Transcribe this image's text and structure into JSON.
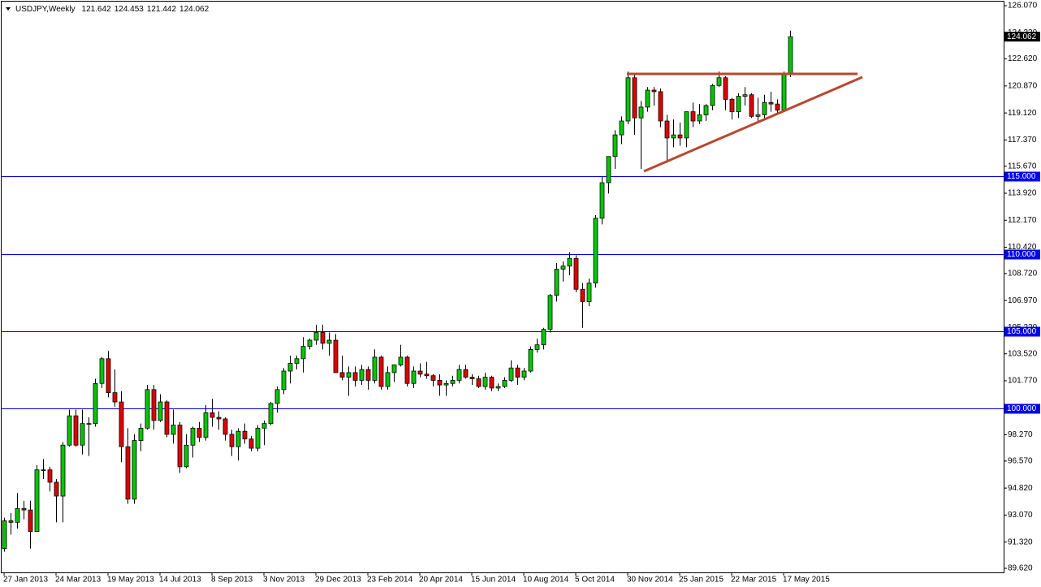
{
  "chart_data": {
    "type": "candlestick",
    "symbol": "USDJPY,Weekly",
    "categories": [
      "27 Jan 2013",
      null,
      null,
      null,
      null,
      null,
      null,
      null,
      "24 Mar 2013",
      null,
      null,
      null,
      null,
      null,
      null,
      null,
      "19 May 2013",
      null,
      null,
      null,
      null,
      null,
      null,
      null,
      "14 Jul 2013",
      null,
      null,
      null,
      null,
      null,
      null,
      null,
      "8 Sep 2013",
      null,
      null,
      null,
      null,
      null,
      null,
      null,
      "3 Nov 2013",
      null,
      null,
      null,
      null,
      null,
      null,
      null,
      "29 Dec 2013",
      null,
      null,
      null,
      null,
      null,
      null,
      null,
      "23 Feb 2014",
      null,
      null,
      null,
      null,
      null,
      null,
      null,
      "20 Apr 2014",
      null,
      null,
      null,
      null,
      null,
      null,
      null,
      "15 Jun 2014",
      null,
      null,
      null,
      null,
      null,
      null,
      null,
      "10 Aug 2014",
      null,
      null,
      null,
      null,
      null,
      null,
      null,
      "5 Oct 2014",
      null,
      null,
      null,
      null,
      null,
      null,
      null,
      "30 Nov 2014",
      null,
      null,
      null,
      null,
      null,
      null,
      null,
      "25 Jan 2015",
      null,
      null,
      null,
      null,
      null,
      null,
      null,
      "22 Mar 2015",
      null,
      null,
      null,
      null,
      null,
      null,
      null,
      "17 May 2015",
      null
    ],
    "open": [
      90.9,
      92.7,
      92.6,
      93.5,
      93.4,
      92.0,
      96.0,
      96.0,
      95.2,
      94.3,
      97.6,
      99.5,
      97.6,
      99.0,
      99.0,
      101.6,
      103.2,
      101.0,
      100.4,
      97.5,
      94.1,
      97.9,
      98.7,
      101.2,
      99.2,
      100.4,
      98.3,
      98.9,
      96.2,
      97.6,
      98.7,
      98.1,
      99.7,
      99.4,
      99.3,
      98.3,
      97.5,
      98.5,
      98.0,
      97.4,
      98.7,
      99.0,
      100.3,
      101.2,
      102.4,
      102.9,
      103.2,
      104.0,
      104.4,
      104.9,
      104.2,
      104.4,
      102.3,
      102.0,
      102.3,
      101.8,
      102.5,
      101.8,
      103.3,
      101.4,
      102.3,
      102.8,
      103.3,
      101.6,
      102.4,
      102.2,
      102.1,
      101.8,
      101.5,
      101.6,
      101.8,
      102.5,
      102.0,
      101.9,
      101.4,
      102.0,
      101.3,
      101.4,
      101.8,
      102.6,
      102.0,
      102.4,
      103.8,
      104.1,
      105.1,
      107.3,
      109.0,
      109.2,
      109.7,
      107.7,
      106.9,
      108.1,
      112.3,
      114.6,
      116.3,
      117.7,
      118.6,
      121.4,
      118.8,
      119.5,
      120.6,
      120.5,
      118.6,
      117.5,
      117.7,
      117.5,
      119.2,
      118.6,
      119.0,
      119.6,
      120.9,
      121.4,
      120.0,
      119.2,
      120.2,
      120.3,
      118.9,
      119.0,
      119.8,
      119.7,
      119.3,
      121.642
    ],
    "high": [
      92.9,
      93.2,
      94.5,
      94.0,
      94.0,
      96.3,
      96.7,
      96.2,
      95.4,
      97.8,
      99.9,
      99.9,
      99.9,
      99.4,
      101.9,
      103.3,
      103.7,
      102.5,
      101.1,
      98.7,
      98.3,
      99.0,
      101.5,
      101.5,
      100.9,
      100.5,
      99.9,
      99.1,
      98.3,
      98.8,
      99.1,
      100.2,
      100.6,
      99.8,
      99.4,
      98.6,
      98.7,
      99.0,
      98.2,
      98.9,
      99.2,
      100.4,
      101.4,
      102.6,
      103.4,
      103.4,
      104.6,
      104.5,
      105.4,
      105.4,
      104.9,
      104.8,
      103.4,
      102.7,
      102.7,
      102.8,
      102.7,
      103.8,
      103.4,
      102.7,
      102.8,
      104.1,
      103.4,
      102.7,
      102.9,
      103.0,
      102.2,
      102.2,
      101.8,
      102.1,
      102.8,
      102.8,
      102.2,
      102.1,
      102.3,
      102.1,
      101.6,
      102.0,
      103.1,
      102.8,
      102.6,
      104.0,
      104.5,
      105.2,
      107.4,
      109.4,
      109.5,
      110.1,
      109.9,
      108.1,
      108.4,
      112.5,
      115.0,
      116.3,
      118.0,
      118.9,
      121.8,
      121.7,
      119.9,
      120.8,
      120.8,
      120.7,
      119.0,
      118.7,
      118.5,
      119.2,
      119.8,
      119.7,
      119.7,
      121.0,
      121.8,
      121.5,
      120.1,
      120.4,
      120.8,
      120.4,
      120.1,
      120.3,
      120.5,
      120.0,
      121.8,
      124.453
    ],
    "low": [
      90.7,
      91.8,
      92.2,
      92.8,
      90.9,
      92.0,
      95.4,
      94.6,
      92.6,
      92.6,
      97.5,
      97.5,
      97.0,
      96.9,
      98.8,
      101.3,
      100.7,
      100.1,
      96.5,
      93.8,
      93.8,
      97.2,
      98.6,
      98.6,
      99.1,
      98.1,
      97.7,
      95.8,
      96.1,
      96.8,
      97.8,
      97.9,
      98.8,
      98.6,
      97.9,
      96.9,
      96.6,
      97.7,
      97.2,
      97.2,
      97.6,
      98.9,
      99.7,
      100.9,
      101.6,
      102.5,
      102.3,
      103.8,
      104.1,
      103.8,
      103.4,
      102.3,
      101.8,
      100.8,
      101.4,
      101.5,
      101.2,
      101.6,
      101.2,
      101.2,
      101.7,
      102.7,
      101.4,
      101.3,
      102.0,
      101.9,
      101.4,
      100.8,
      100.8,
      101.4,
      101.6,
      101.9,
      101.5,
      101.3,
      101.2,
      101.1,
      101.1,
      101.3,
      101.7,
      101.5,
      101.8,
      102.3,
      103.6,
      103.8,
      104.9,
      106.9,
      108.2,
      108.6,
      107.5,
      105.2,
      106.6,
      107.8,
      111.9,
      113.9,
      115.5,
      117.1,
      118.4,
      117.7,
      115.5,
      119.2,
      119.6,
      118.2,
      115.9,
      116.9,
      117.0,
      116.9,
      118.2,
      118.4,
      118.6,
      119.3,
      120.8,
      119.3,
      118.7,
      118.8,
      119.6,
      118.8,
      118.5,
      118.8,
      119.2,
      119.0,
      119.2,
      121.442
    ],
    "close": [
      92.7,
      92.6,
      93.5,
      93.4,
      92.0,
      96.0,
      96.0,
      95.2,
      94.3,
      97.6,
      99.5,
      97.6,
      99.0,
      99.0,
      101.6,
      103.2,
      101.0,
      100.4,
      97.5,
      94.1,
      97.9,
      98.7,
      101.2,
      99.2,
      100.4,
      98.3,
      98.9,
      96.2,
      97.6,
      98.7,
      98.1,
      99.7,
      99.4,
      99.3,
      98.3,
      97.5,
      98.5,
      98.0,
      97.4,
      98.7,
      99.0,
      100.3,
      101.2,
      102.4,
      102.9,
      103.2,
      104.0,
      104.4,
      104.9,
      104.2,
      104.4,
      102.3,
      102.0,
      102.3,
      101.8,
      102.5,
      101.8,
      103.3,
      101.4,
      102.3,
      102.8,
      103.3,
      101.6,
      102.4,
      102.2,
      102.1,
      101.8,
      101.5,
      101.6,
      101.8,
      102.5,
      102.0,
      101.9,
      101.4,
      102.0,
      101.3,
      101.4,
      101.8,
      102.6,
      102.0,
      102.4,
      103.8,
      104.1,
      105.1,
      107.3,
      109.0,
      109.2,
      109.7,
      107.7,
      106.9,
      108.1,
      112.3,
      114.6,
      116.3,
      117.7,
      118.6,
      121.4,
      118.8,
      119.5,
      120.6,
      120.5,
      118.6,
      117.5,
      117.7,
      117.5,
      119.2,
      118.6,
      119.0,
      119.6,
      120.9,
      121.4,
      120.0,
      119.2,
      120.2,
      120.3,
      118.9,
      119.0,
      119.8,
      119.7,
      119.3,
      121.642,
      124.062
    ],
    "up_color": "#00c800",
    "down_color": "#e00000",
    "ylim": [
      89.62,
      126.07
    ],
    "yticks": [
      {
        "value": 126.07,
        "label": "126.070"
      },
      {
        "value": 124.32,
        "label": "124.320"
      },
      {
        "value": 122.62,
        "label": "122.620"
      },
      {
        "value": 120.87,
        "label": "120.870"
      },
      {
        "value": 119.12,
        "label": "119.120"
      },
      {
        "value": 117.37,
        "label": "117.370"
      },
      {
        "value": 115.67,
        "label": "115.670"
      },
      {
        "value": 113.92,
        "label": "113.920"
      },
      {
        "value": 112.17,
        "label": "112.170"
      },
      {
        "value": 110.42,
        "label": "110.420"
      },
      {
        "value": 108.72,
        "label": "108.720"
      },
      {
        "value": 106.97,
        "label": "106.970"
      },
      {
        "value": 105.22,
        "label": "105.220"
      },
      {
        "value": 103.52,
        "label": "103.520"
      },
      {
        "value": 101.77,
        "label": "101.770"
      },
      {
        "value": 100.02,
        "label": "100.020"
      },
      {
        "value": 98.27,
        "label": "98.270"
      },
      {
        "value": 96.57,
        "label": "96.570"
      },
      {
        "value": 94.82,
        "label": "94.820"
      },
      {
        "value": 93.07,
        "label": "93.070"
      },
      {
        "value": 91.32,
        "label": "91.320"
      },
      {
        "value": 89.62,
        "label": "89.620"
      }
    ],
    "hlines": [
      {
        "value": 115,
        "label": "115.000"
      },
      {
        "value": 110,
        "label": "110.000"
      },
      {
        "value": 105,
        "label": "105.000"
      },
      {
        "value": 100,
        "label": "100.000"
      }
    ],
    "hline_color": "#0000ee",
    "grid": false
  }
}
